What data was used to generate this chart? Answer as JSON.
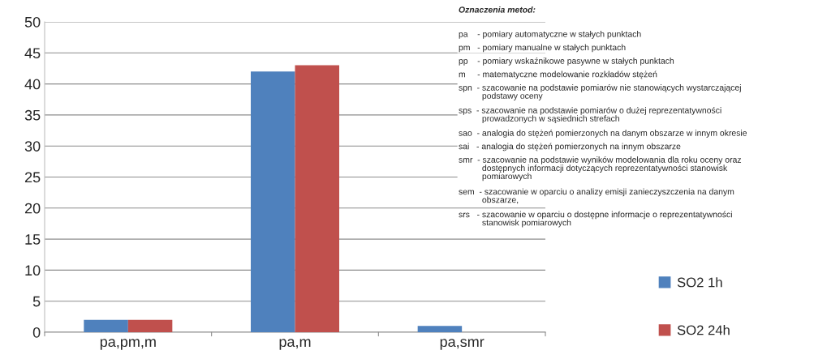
{
  "chart_data": {
    "type": "bar",
    "categories": [
      "pa,pm,m",
      "pa,m",
      "pa,smr"
    ],
    "series": [
      {
        "name": "SO2 1h",
        "color": "#4f81bd",
        "values": [
          2,
          42,
          1
        ]
      },
      {
        "name": "SO2 24h",
        "color": "#c0504d",
        "values": [
          2,
          43,
          null
        ]
      }
    ],
    "ylim": [
      0,
      50
    ],
    "yticks": [
      0,
      5,
      10,
      15,
      20,
      25,
      30,
      35,
      40,
      45,
      50
    ],
    "grid": "y",
    "legend": "right",
    "annotations": [
      "Oznaczenia metod:",
      "pa    - pomiary automatyczne w stałych punktach",
      "pm   - pomiary manualne w stałych punktach",
      "pp    - pomiary wskaźnikowe pasywne w stałych punktach",
      "m     - matematyczne modelowanie rozkładów stężeń",
      "spn  - szacowanie na podstawie pomiarów nie stanowiących wystarczającej\n          podstawy oceny",
      "sps  - szacowanie na podstawie pomiarów o dużej reprezentatywności\n          prowadzonych w sąsiednich strefach",
      "sao  - analogia do stężeń pomierzonych na danym obszarze w innym okresie",
      "sai   - analogia do stężeń pomierzonych na innym obszarze",
      "smr  - szacowanie na podstawie wyników modelowania dla roku oceny oraz\n          dostępnych informacji dotyczących reprezentatywności stanowisk\n          pomiarowych",
      "sem  - szacowanie w oparciu o analizy emisji zanieczyszczenia na danym\n          obszarze,",
      "srs   - szacowanie w oparciu o dostępne informacje o reprezentatywności\n          stanowisk pomiarowych"
    ]
  }
}
